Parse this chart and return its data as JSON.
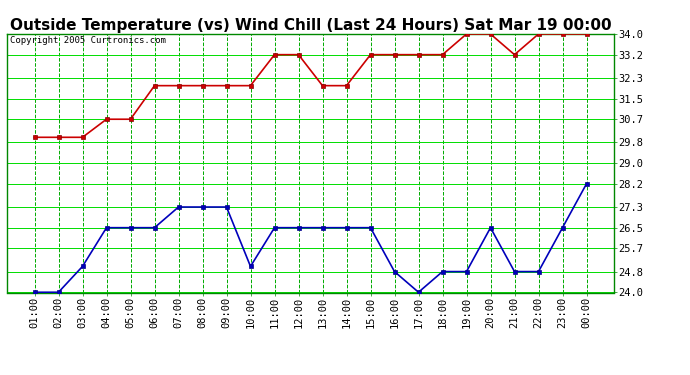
{
  "title": "Outside Temperature (vs) Wind Chill (Last 24 Hours) Sat Mar 19 00:00",
  "copyright": "Copyright 2005 Curtronics.com",
  "x_labels": [
    "01:00",
    "02:00",
    "03:00",
    "04:00",
    "05:00",
    "06:00",
    "07:00",
    "08:00",
    "09:00",
    "10:00",
    "11:00",
    "12:00",
    "13:00",
    "14:00",
    "15:00",
    "16:00",
    "17:00",
    "18:00",
    "19:00",
    "20:00",
    "21:00",
    "22:00",
    "23:00",
    "00:00"
  ],
  "red_data": [
    30.0,
    30.0,
    30.0,
    30.7,
    30.7,
    32.0,
    32.0,
    32.0,
    32.0,
    32.0,
    33.2,
    33.2,
    32.0,
    32.0,
    33.2,
    33.2,
    33.2,
    33.2,
    34.0,
    34.0,
    33.2,
    34.0,
    34.0,
    34.0
  ],
  "blue_data": [
    24.0,
    24.0,
    25.0,
    26.5,
    26.5,
    26.5,
    27.3,
    27.3,
    27.3,
    25.0,
    26.5,
    26.5,
    26.5,
    26.5,
    26.5,
    24.8,
    24.0,
    24.8,
    24.8,
    26.5,
    24.8,
    24.8,
    26.5,
    28.2
  ],
  "ylim": [
    24.0,
    34.0
  ],
  "yticks": [
    24.0,
    24.8,
    25.7,
    26.5,
    27.3,
    28.2,
    29.0,
    29.8,
    30.7,
    31.5,
    32.3,
    33.2,
    34.0
  ],
  "background_color": "#ffffff",
  "plot_bg_color": "#ffffff",
  "grid_color_h": "#00dd00",
  "grid_color_v": "#00aa00",
  "title_fontsize": 11,
  "copyright_fontsize": 6.5,
  "red_color": "#cc0000",
  "blue_color": "#0000bb",
  "tick_fontsize": 7.5
}
